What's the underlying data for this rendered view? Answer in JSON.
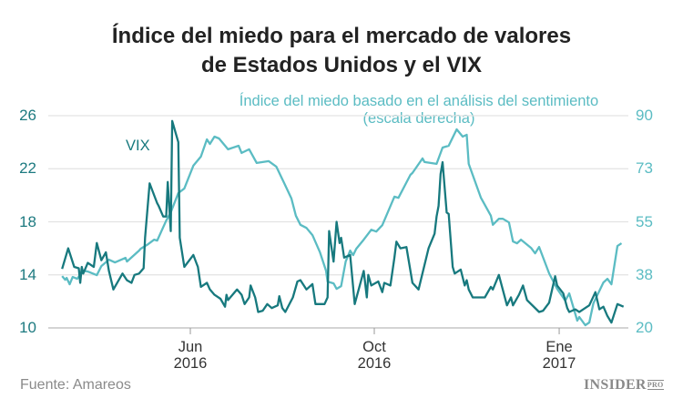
{
  "chart_data": {
    "type": "line",
    "title": "Índice del miedo para el mercado de valores",
    "title_line2": "de Estados Unidos y el VIX",
    "source": "Fuente: Amareos",
    "logo": "INSIDER PRO",
    "left_axis": {
      "ticks": [
        "10",
        "14",
        "18",
        "22",
        "26"
      ],
      "ylim": [
        10,
        26
      ]
    },
    "right_axis": {
      "label_line1": "Índice del miedo basado en el análisis del sentimiento",
      "label_line2": "(escala derecha)",
      "ticks": [
        "20",
        "38",
        "55",
        "73",
        "90"
      ],
      "ylim": [
        20,
        90
      ]
    },
    "x_ticks": [
      {
        "date": "2016-06-01",
        "label": "Jun",
        "year": "2016"
      },
      {
        "date": "2016-10-01",
        "label": "Oct",
        "year": "2016"
      },
      {
        "date": "2017-01-01",
        "label": "Ene",
        "year": "2017"
      }
    ],
    "grid": true,
    "colors": {
      "vix": "#17797e",
      "sentiment": "#5bbcc3",
      "grid": "#e3e3e3"
    },
    "series": [
      {
        "name": "VIX",
        "axis": "left",
        "points": [
          [
            "2016-03-08",
            14.45
          ],
          [
            "2016-03-12",
            16.0
          ],
          [
            "2016-03-16",
            14.6
          ],
          [
            "2016-03-19",
            14.5
          ],
          [
            "2016-03-20",
            13.4
          ],
          [
            "2016-03-21",
            14.6
          ],
          [
            "2016-03-22",
            14.1
          ],
          [
            "2016-03-25",
            14.9
          ],
          [
            "2016-03-29",
            14.6
          ],
          [
            "2016-03-31",
            16.4
          ],
          [
            "2016-04-03",
            15.1
          ],
          [
            "2016-04-06",
            15.7
          ],
          [
            "2016-04-08",
            14.3
          ],
          [
            "2016-04-11",
            12.9
          ],
          [
            "2016-04-17",
            14.1
          ],
          [
            "2016-04-20",
            13.6
          ],
          [
            "2016-04-23",
            13.4
          ],
          [
            "2016-04-25",
            14.0
          ],
          [
            "2016-04-28",
            14.1
          ],
          [
            "2016-05-01",
            14.5
          ],
          [
            "2016-05-02",
            16.8
          ],
          [
            "2016-05-05",
            20.9
          ],
          [
            "2016-05-07",
            20.3
          ],
          [
            "2016-05-10",
            19.4
          ],
          [
            "2016-05-11",
            19.2
          ],
          [
            "2016-05-14",
            18.4
          ],
          [
            "2016-05-16",
            18.4
          ],
          [
            "2016-05-17",
            21.0
          ],
          [
            "2016-05-19",
            17.3
          ],
          [
            "2016-05-20",
            25.6
          ],
          [
            "2016-05-24",
            24.0
          ],
          [
            "2016-05-25",
            16.8
          ],
          [
            "2016-05-28",
            14.6
          ],
          [
            "2016-06-03",
            15.5
          ],
          [
            "2016-06-05",
            14.9
          ],
          [
            "2016-06-06",
            14.6
          ],
          [
            "2016-06-08",
            13.1
          ],
          [
            "2016-06-12",
            13.4
          ],
          [
            "2016-06-14",
            12.9
          ],
          [
            "2016-06-17",
            12.5
          ],
          [
            "2016-06-21",
            12.2
          ],
          [
            "2016-06-24",
            11.6
          ],
          [
            "2016-06-25",
            12.5
          ],
          [
            "2016-06-26",
            12.1
          ],
          [
            "2016-07-02",
            12.9
          ],
          [
            "2016-07-05",
            12.5
          ],
          [
            "2016-07-07",
            11.8
          ],
          [
            "2016-07-10",
            12.3
          ],
          [
            "2016-07-11",
            13.2
          ],
          [
            "2016-07-14",
            12.3
          ],
          [
            "2016-07-16",
            11.2
          ],
          [
            "2016-07-19",
            11.3
          ],
          [
            "2016-07-22",
            11.8
          ],
          [
            "2016-07-25",
            11.5
          ],
          [
            "2016-07-29",
            11.7
          ],
          [
            "2016-07-30",
            12.4
          ],
          [
            "2016-08-01",
            11.5
          ],
          [
            "2016-08-03",
            11.2
          ],
          [
            "2016-08-08",
            12.3
          ],
          [
            "2016-08-11",
            13.5
          ],
          [
            "2016-08-13",
            13.6
          ],
          [
            "2016-08-17",
            12.9
          ],
          [
            "2016-08-21",
            13.3
          ],
          [
            "2016-08-23",
            11.8
          ],
          [
            "2016-08-29",
            11.8
          ],
          [
            "2016-08-31",
            12.3
          ],
          [
            "2016-09-01",
            17.3
          ],
          [
            "2016-09-04",
            15.0
          ],
          [
            "2016-09-06",
            18.0
          ],
          [
            "2016-09-08",
            16.4
          ],
          [
            "2016-09-09",
            16.8
          ],
          [
            "2016-09-11",
            15.3
          ],
          [
            "2016-09-15",
            15.5
          ],
          [
            "2016-09-18",
            11.8
          ],
          [
            "2016-09-24",
            14.3
          ],
          [
            "2016-09-26",
            12.3
          ],
          [
            "2016-09-27",
            14.0
          ],
          [
            "2016-09-29",
            13.2
          ],
          [
            "2016-10-03",
            13.5
          ],
          [
            "2016-10-05",
            12.7
          ],
          [
            "2016-10-06",
            13.4
          ],
          [
            "2016-10-09",
            13.2
          ],
          [
            "2016-10-11",
            15.3
          ],
          [
            "2016-10-12",
            16.5
          ],
          [
            "2016-10-14",
            16.0
          ],
          [
            "2016-10-17",
            16.1
          ],
          [
            "2016-10-20",
            13.4
          ],
          [
            "2016-10-23",
            12.9
          ],
          [
            "2016-10-28",
            16.0
          ],
          [
            "2016-10-31",
            17.1
          ],
          [
            "2016-11-01",
            18.4
          ],
          [
            "2016-11-02",
            19.2
          ],
          [
            "2016-11-03",
            21.6
          ],
          [
            "2016-11-04",
            22.5
          ],
          [
            "2016-11-06",
            18.7
          ],
          [
            "2016-11-07",
            18.6
          ],
          [
            "2016-11-09",
            14.6
          ],
          [
            "2016-11-10",
            14.1
          ],
          [
            "2016-11-13",
            14.4
          ],
          [
            "2016-11-15",
            13.2
          ],
          [
            "2016-11-16",
            13.6
          ],
          [
            "2016-11-17",
            12.9
          ],
          [
            "2016-11-19",
            12.3
          ],
          [
            "2016-11-25",
            12.3
          ],
          [
            "2016-11-28",
            13.1
          ],
          [
            "2016-11-29",
            12.9
          ],
          [
            "2016-12-02",
            14.0
          ],
          [
            "2016-12-06",
            11.7
          ],
          [
            "2016-12-08",
            12.3
          ],
          [
            "2016-12-09",
            11.7
          ],
          [
            "2016-12-12",
            12.5
          ],
          [
            "2016-12-14",
            13.2
          ],
          [
            "2016-12-16",
            12.1
          ],
          [
            "2016-12-22",
            11.2
          ],
          [
            "2016-12-24",
            11.3
          ],
          [
            "2016-12-27",
            11.9
          ],
          [
            "2016-12-30",
            13.9
          ],
          [
            "2016-12-31",
            13.2
          ],
          [
            "2017-01-03",
            12.6
          ],
          [
            "2017-01-05",
            11.5
          ],
          [
            "2017-01-06",
            11.2
          ],
          [
            "2017-01-09",
            11.4
          ],
          [
            "2017-01-11",
            11.2
          ],
          [
            "2017-01-13",
            11.4
          ],
          [
            "2017-01-16",
            11.7
          ],
          [
            "2017-01-19",
            12.7
          ],
          [
            "2017-01-21",
            11.4
          ],
          [
            "2017-01-23",
            11.6
          ],
          [
            "2017-01-25",
            10.9
          ],
          [
            "2017-01-27",
            10.4
          ],
          [
            "2017-01-30",
            11.8
          ],
          [
            "2017-02-02",
            11.6
          ]
        ]
      },
      {
        "name": "Índice del miedo basado en el análisis del sentimiento",
        "axis": "right",
        "points": [
          [
            "2016-03-08",
            37.1
          ],
          [
            "2016-03-10",
            35.9
          ],
          [
            "2016-03-11",
            36.5
          ],
          [
            "2016-03-13",
            34.4
          ],
          [
            "2016-03-15",
            36.8
          ],
          [
            "2016-03-18",
            36.2
          ],
          [
            "2016-03-22",
            38.9
          ],
          [
            "2016-03-25",
            38.6
          ],
          [
            "2016-03-31",
            37.4
          ],
          [
            "2016-04-03",
            40.4
          ],
          [
            "2016-04-08",
            42.5
          ],
          [
            "2016-04-12",
            41.6
          ],
          [
            "2016-04-19",
            43.1
          ],
          [
            "2016-04-20",
            41.9
          ],
          [
            "2016-04-28",
            45.5
          ],
          [
            "2016-04-29",
            46.1
          ],
          [
            "2016-05-04",
            47.6
          ],
          [
            "2016-05-08",
            49.1
          ],
          [
            "2016-05-10",
            48.8
          ],
          [
            "2016-05-16",
            55.4
          ],
          [
            "2016-05-19",
            58.1
          ],
          [
            "2016-05-24",
            64.5
          ],
          [
            "2016-05-28",
            66.0
          ],
          [
            "2016-06-03",
            73.5
          ],
          [
            "2016-06-08",
            76.5
          ],
          [
            "2016-06-12",
            82.2
          ],
          [
            "2016-06-14",
            80.7
          ],
          [
            "2016-06-17",
            83.1
          ],
          [
            "2016-06-20",
            82.5
          ],
          [
            "2016-06-26",
            78.9
          ],
          [
            "2016-07-03",
            80.1
          ],
          [
            "2016-07-05",
            77.7
          ],
          [
            "2016-07-10",
            78.9
          ],
          [
            "2016-07-15",
            74.4
          ],
          [
            "2016-07-23",
            75.0
          ],
          [
            "2016-07-28",
            73.2
          ],
          [
            "2016-08-02",
            68.0
          ],
          [
            "2016-08-07",
            62.7
          ],
          [
            "2016-08-10",
            57.0
          ],
          [
            "2016-08-13",
            54.0
          ],
          [
            "2016-08-17",
            53.0
          ],
          [
            "2016-08-21",
            50.6
          ],
          [
            "2016-08-26",
            44.9
          ],
          [
            "2016-08-30",
            38.9
          ],
          [
            "2016-08-31",
            35.3
          ],
          [
            "2016-09-04",
            34.7
          ],
          [
            "2016-09-06",
            32.9
          ],
          [
            "2016-09-09",
            33.8
          ],
          [
            "2016-09-12",
            41.9
          ],
          [
            "2016-09-15",
            45.5
          ],
          [
            "2016-09-17",
            44.0
          ],
          [
            "2016-09-19",
            46.1
          ],
          [
            "2016-09-24",
            49.1
          ],
          [
            "2016-09-29",
            52.4
          ],
          [
            "2016-10-02",
            51.8
          ],
          [
            "2016-10-05",
            53.9
          ],
          [
            "2016-10-11",
            63.3
          ],
          [
            "2016-10-13",
            62.9
          ],
          [
            "2016-10-19",
            70.5
          ],
          [
            "2016-10-20",
            71.1
          ],
          [
            "2016-10-25",
            75.9
          ],
          [
            "2016-10-26",
            74.7
          ],
          [
            "2016-11-01",
            74.1
          ],
          [
            "2016-11-04",
            79.5
          ],
          [
            "2016-11-07",
            80.1
          ],
          [
            "2016-11-11",
            85.5
          ],
          [
            "2016-11-14",
            83.1
          ],
          [
            "2016-11-16",
            83.7
          ],
          [
            "2016-11-17",
            74.1
          ],
          [
            "2016-11-23",
            63.0
          ],
          [
            "2016-11-28",
            57.0
          ],
          [
            "2016-11-29",
            54.0
          ],
          [
            "2016-12-02",
            56.0
          ],
          [
            "2016-12-04",
            56.0
          ],
          [
            "2016-12-07",
            54.8
          ],
          [
            "2016-12-09",
            48.5
          ],
          [
            "2016-12-11",
            47.9
          ],
          [
            "2016-12-13",
            49.1
          ],
          [
            "2016-12-18",
            46.4
          ],
          [
            "2016-12-20",
            44.6
          ],
          [
            "2016-12-22",
            46.7
          ],
          [
            "2016-12-27",
            38.0
          ],
          [
            "2016-12-31",
            32.9
          ],
          [
            "2017-01-04",
            29.0
          ],
          [
            "2017-01-06",
            31.4
          ],
          [
            "2017-01-10",
            22.4
          ],
          [
            "2017-01-11",
            23.6
          ],
          [
            "2017-01-14",
            20.9
          ],
          [
            "2017-01-16",
            21.8
          ],
          [
            "2017-01-18",
            28.1
          ],
          [
            "2017-01-23",
            35.0
          ],
          [
            "2017-01-25",
            36.2
          ],
          [
            "2017-01-27",
            34.4
          ],
          [
            "2017-01-30",
            47.0
          ],
          [
            "2017-02-01",
            47.9
          ]
        ]
      }
    ]
  }
}
